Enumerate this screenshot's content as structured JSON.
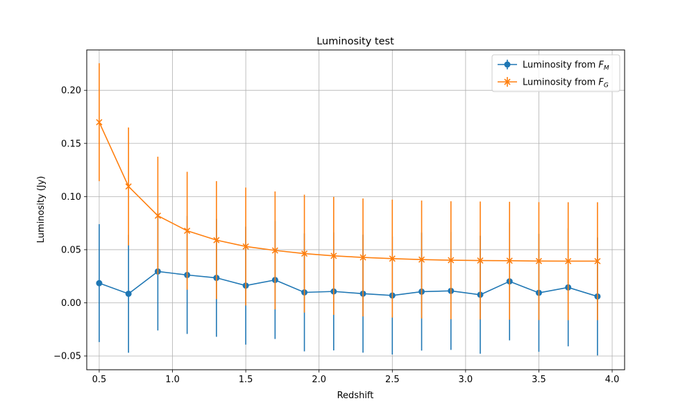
{
  "chart_data": {
    "type": "line",
    "title": "Luminosity test",
    "xlabel": "Redshift",
    "ylabel": "Luminosity (Jy)",
    "xlim": [
      0.415,
      4.085
    ],
    "ylim": [
      -0.063,
      0.238
    ],
    "xticks": [
      0.5,
      1.0,
      1.5,
      2.0,
      2.5,
      3.0,
      3.5,
      4.0
    ],
    "xtick_labels": [
      "0.5",
      "1.0",
      "1.5",
      "2.0",
      "2.5",
      "3.0",
      "3.5",
      "4.0"
    ],
    "yticks": [
      -0.05,
      0.0,
      0.05,
      0.1,
      0.15,
      0.2
    ],
    "ytick_labels": [
      "−0.05",
      "0.00",
      "0.05",
      "0.10",
      "0.15",
      "0.20"
    ],
    "grid": true,
    "legend_position": "upper right",
    "x": [
      0.5,
      0.7,
      0.9,
      1.1,
      1.3,
      1.5,
      1.7,
      1.9,
      2.1,
      2.3,
      2.5,
      2.7,
      2.9,
      3.1,
      3.3,
      3.5,
      3.7,
      3.9
    ],
    "series": [
      {
        "name_prefix": "Luminosity from ",
        "name_symbol": "F",
        "name_sub": "M",
        "color": "#1f77b4",
        "marker": "circle",
        "values": [
          0.0185,
          0.0085,
          0.0295,
          0.0262,
          0.0235,
          0.0162,
          0.0215,
          0.0098,
          0.0107,
          0.0086,
          0.0069,
          0.0105,
          0.0112,
          0.0076,
          0.0202,
          0.0094,
          0.0145,
          0.006
        ],
        "errors": [
          0.0555,
          0.0555,
          0.0555,
          0.0555,
          0.0555,
          0.0555,
          0.0555,
          0.0555,
          0.0555,
          0.0555,
          0.0555,
          0.0555,
          0.0555,
          0.0555,
          0.0555,
          0.0555,
          0.0555,
          0.0555
        ]
      },
      {
        "name_prefix": "Luminosity from ",
        "name_symbol": "F",
        "name_sub": "G",
        "color": "#ff7f0e",
        "marker": "x",
        "values": [
          0.17,
          0.1095,
          0.082,
          0.0678,
          0.059,
          0.053,
          0.0493,
          0.0463,
          0.0442,
          0.0427,
          0.0416,
          0.0407,
          0.0401,
          0.0398,
          0.0396,
          0.0393,
          0.0392,
          0.0392
        ],
        "errors": [
          0.0555,
          0.0555,
          0.0555,
          0.0555,
          0.0555,
          0.0555,
          0.0555,
          0.0555,
          0.0555,
          0.0555,
          0.0555,
          0.0555,
          0.0555,
          0.0555,
          0.0555,
          0.0555,
          0.0555,
          0.0555
        ]
      }
    ]
  }
}
